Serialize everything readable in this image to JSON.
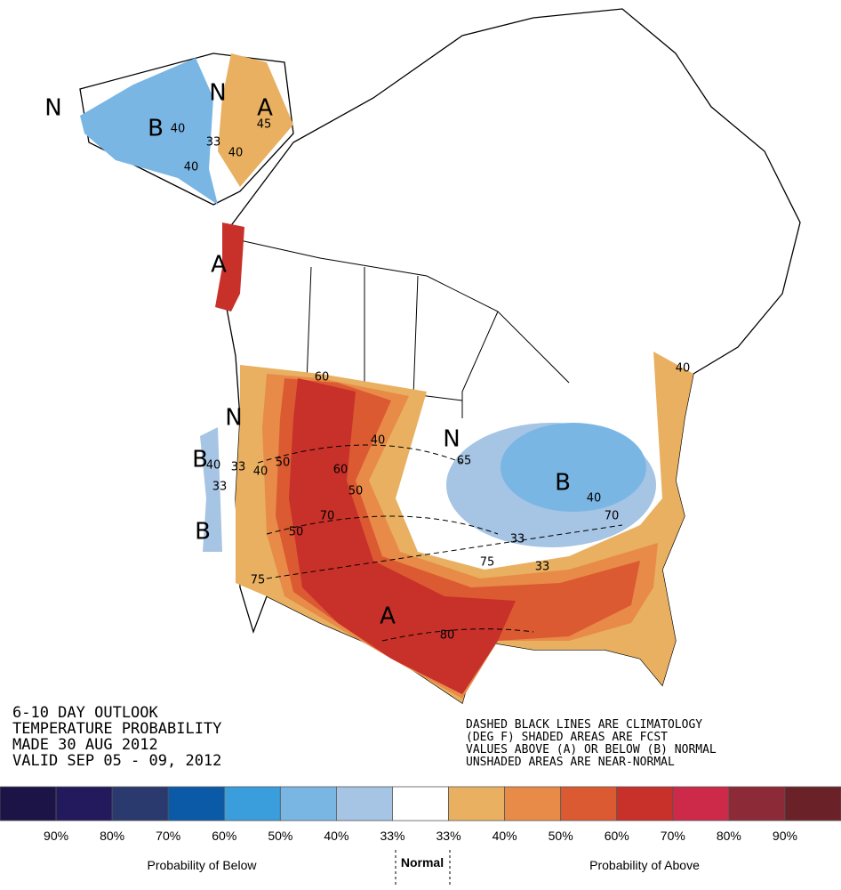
{
  "map": {
    "labels": [
      "N",
      "B",
      "N",
      "A",
      "A",
      "N",
      "B",
      "B",
      "N",
      "B",
      "A"
    ],
    "contours": [
      "40",
      "33",
      "40",
      "45",
      "40",
      "40",
      "60",
      "50",
      "50",
      "40",
      "33",
      "40",
      "33",
      "50",
      "70",
      "65",
      "40",
      "70",
      "33",
      "33",
      "75",
      "80",
      "75",
      "40",
      "60"
    ]
  },
  "title_block": [
    "6-10 DAY OUTLOOK",
    "TEMPERATURE PROBABILITY",
    "MADE  30 AUG 2012",
    "VALID  SEP 05 - 09, 2012"
  ],
  "note": [
    "DASHED BLACK LINES ARE CLIMATOLOGY",
    "(DEG F)  SHADED AREAS ARE FCST",
    "VALUES ABOVE (A) OR BELOW (B) NORMAL",
    "UNSHADED AREAS ARE NEAR-NORMAL"
  ],
  "legend": {
    "colors": [
      "#1c1447",
      "#221a5c",
      "#2a3a6e",
      "#0a5aa8",
      "#3a9ddc",
      "#7ab6e4",
      "#a6c4e4",
      "#ffffff",
      "#e8b060",
      "#e88b48",
      "#dc5a32",
      "#c8302a",
      "#cc2a48",
      "#8c2a38",
      "#6a2228"
    ],
    "labels": [
      "90%",
      "80%",
      "70%",
      "60%",
      "50%",
      "40%",
      "33%",
      "33%",
      "40%",
      "50%",
      "60%",
      "70%",
      "80%",
      "90%"
    ],
    "below": "Probability of Below",
    "normal": "Normal",
    "above": "Probability of Above"
  }
}
